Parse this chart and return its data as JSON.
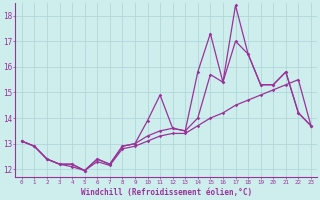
{
  "xlabel": "Windchill (Refroidissement éolien,°C)",
  "background_color": "#ceeeed",
  "grid_color": "#aad4d4",
  "line_color": "#993399",
  "xlim": [
    -0.5,
    23.5
  ],
  "ylim": [
    11.7,
    18.5
  ],
  "yticks": [
    12,
    13,
    14,
    15,
    16,
    17,
    18
  ],
  "xticks": [
    0,
    1,
    2,
    3,
    4,
    5,
    6,
    7,
    8,
    9,
    10,
    11,
    12,
    13,
    14,
    15,
    16,
    17,
    18,
    19,
    20,
    21,
    22,
    23
  ],
  "line1_x": [
    0,
    1,
    2,
    3,
    4,
    5,
    6,
    7,
    8,
    9,
    10,
    11,
    12,
    13,
    14,
    15,
    16,
    17,
    18,
    19,
    20,
    21,
    22,
    23
  ],
  "line1_y": [
    13.1,
    12.9,
    12.4,
    12.2,
    12.2,
    11.95,
    12.4,
    12.2,
    12.9,
    13.0,
    13.3,
    13.5,
    13.6,
    13.5,
    14.0,
    15.7,
    15.4,
    17.0,
    16.5,
    15.3,
    15.3,
    15.8,
    14.2,
    13.7
  ],
  "line2_x": [
    0,
    1,
    2,
    3,
    4,
    5,
    6,
    7,
    8,
    9,
    10,
    11,
    12,
    13,
    14,
    15,
    16,
    17,
    18,
    19,
    20,
    21,
    22,
    23
  ],
  "line2_y": [
    13.1,
    12.9,
    12.4,
    12.2,
    12.2,
    11.95,
    12.4,
    12.2,
    12.9,
    13.0,
    13.9,
    14.9,
    13.6,
    13.5,
    15.8,
    17.3,
    15.4,
    18.4,
    16.5,
    15.3,
    15.3,
    15.8,
    14.2,
    13.7
  ],
  "line3_x": [
    0,
    1,
    2,
    3,
    4,
    5,
    6,
    7,
    8,
    9,
    10,
    11,
    12,
    13,
    14,
    15,
    16,
    17,
    18,
    19,
    20,
    21,
    22,
    23
  ],
  "line3_y": [
    13.1,
    12.9,
    12.4,
    12.2,
    12.1,
    11.95,
    12.3,
    12.15,
    12.8,
    12.9,
    13.1,
    13.3,
    13.4,
    13.4,
    13.7,
    14.0,
    14.2,
    14.5,
    14.7,
    14.9,
    15.1,
    15.3,
    15.5,
    13.7
  ]
}
